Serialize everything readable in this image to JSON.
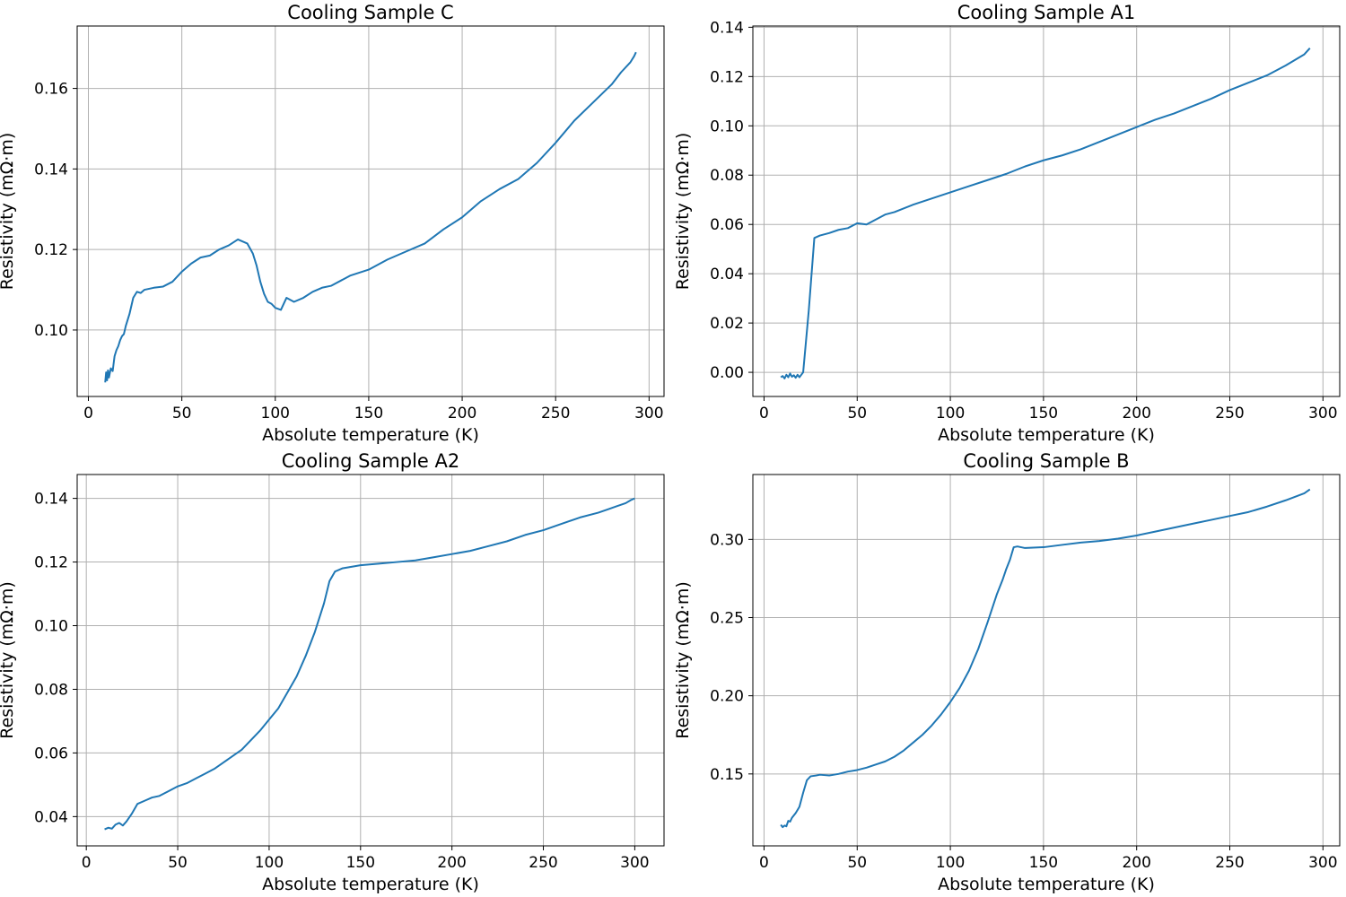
{
  "chart_data": [
    {
      "type": "line",
      "title": "Cooling Sample C",
      "xlabel": "Absolute temperature (K)",
      "ylabel": "Resistivity (mΩ·m)",
      "xlim": [
        -6,
        308
      ],
      "ylim": [
        0.0835,
        0.1755
      ],
      "xticks": [
        0,
        50,
        100,
        150,
        200,
        250,
        300
      ],
      "yticks": [
        0.1,
        0.12,
        0.14,
        0.16
      ],
      "ytick_decimals": 2,
      "grid": true,
      "color": "#1f77b4",
      "x": [
        9,
        9.5,
        10,
        10.5,
        11,
        12,
        13,
        14,
        15,
        16,
        17,
        18,
        19,
        20,
        22,
        24,
        26,
        28,
        30,
        35,
        40,
        45,
        50,
        55,
        60,
        65,
        70,
        75,
        80,
        85,
        88,
        90,
        92,
        94,
        96,
        98,
        100,
        103,
        106,
        110,
        115,
        120,
        125,
        130,
        140,
        150,
        160,
        170,
        180,
        190,
        200,
        210,
        220,
        230,
        240,
        250,
        260,
        270,
        280,
        285,
        290,
        292,
        293
      ],
      "y": [
        0.087,
        0.0895,
        0.0875,
        0.09,
        0.0882,
        0.0905,
        0.0898,
        0.0935,
        0.095,
        0.096,
        0.0975,
        0.0985,
        0.099,
        0.101,
        0.104,
        0.108,
        0.1095,
        0.1092,
        0.11,
        0.1105,
        0.1108,
        0.112,
        0.1145,
        0.1165,
        0.118,
        0.1185,
        0.12,
        0.121,
        0.1225,
        0.1215,
        0.119,
        0.116,
        0.112,
        0.109,
        0.107,
        0.1065,
        0.1055,
        0.105,
        0.108,
        0.107,
        0.108,
        0.1095,
        0.1105,
        0.111,
        0.1135,
        0.115,
        0.1175,
        0.1195,
        0.1215,
        0.125,
        0.128,
        0.132,
        0.135,
        0.1375,
        0.1415,
        0.1465,
        0.152,
        0.1565,
        0.161,
        0.164,
        0.1665,
        0.168,
        0.169
      ]
    },
    {
      "type": "line",
      "title": "Cooling Sample A1",
      "xlabel": "Absolute temperature (K)",
      "ylabel": "Resistivity (mΩ·m)",
      "xlim": [
        -6,
        309
      ],
      "ylim": [
        -0.0098,
        0.1405
      ],
      "xticks": [
        0,
        50,
        100,
        150,
        200,
        250,
        300
      ],
      "yticks": [
        0.0,
        0.02,
        0.04,
        0.06,
        0.08,
        0.1,
        0.12,
        0.14
      ],
      "ytick_decimals": 2,
      "grid": true,
      "color": "#1f77b4",
      "x": [
        9,
        10,
        11,
        12,
        13,
        14,
        15,
        16,
        17,
        18,
        19,
        20,
        21,
        24,
        27,
        30,
        35,
        40,
        45,
        50,
        55,
        60,
        65,
        70,
        80,
        90,
        100,
        110,
        120,
        130,
        140,
        150,
        160,
        170,
        180,
        190,
        200,
        210,
        220,
        230,
        240,
        250,
        260,
        270,
        280,
        290,
        293
      ],
      "y": [
        -0.002,
        -0.0015,
        -0.0025,
        -0.001,
        -0.002,
        -0.0005,
        -0.0018,
        -0.0012,
        -0.0022,
        -0.001,
        -0.002,
        -0.001,
        0.0,
        0.025,
        0.0545,
        0.0555,
        0.0565,
        0.0578,
        0.0585,
        0.0605,
        0.06,
        0.062,
        0.064,
        0.065,
        0.068,
        0.0705,
        0.073,
        0.0755,
        0.078,
        0.0805,
        0.0835,
        0.086,
        0.088,
        0.0905,
        0.0935,
        0.0965,
        0.0995,
        0.1025,
        0.105,
        0.108,
        0.111,
        0.1145,
        0.1175,
        0.1205,
        0.1245,
        0.129,
        0.1315
      ]
    },
    {
      "type": "line",
      "title": "Cooling Sample A2",
      "xlabel": "Absolute temperature (K)",
      "ylabel": "Resistivity (mΩ·m)",
      "xlim": [
        -5,
        316
      ],
      "ylim": [
        0.0308,
        0.1475
      ],
      "xticks": [
        0,
        50,
        100,
        150,
        200,
        250,
        300
      ],
      "yticks": [
        0.04,
        0.06,
        0.08,
        0.1,
        0.12,
        0.14
      ],
      "ytick_decimals": 2,
      "grid": true,
      "color": "#1f77b4",
      "x": [
        10,
        12,
        14,
        16,
        18,
        20,
        22,
        25,
        28,
        32,
        36,
        40,
        45,
        50,
        55,
        60,
        65,
        70,
        75,
        80,
        85,
        90,
        95,
        100,
        105,
        110,
        115,
        120,
        125,
        130,
        133,
        136,
        140,
        145,
        150,
        160,
        170,
        180,
        190,
        200,
        210,
        220,
        230,
        240,
        250,
        260,
        270,
        280,
        285,
        290,
        295,
        298,
        300
      ],
      "y": [
        0.036,
        0.0365,
        0.0362,
        0.0375,
        0.038,
        0.0372,
        0.0385,
        0.041,
        0.044,
        0.045,
        0.046,
        0.0465,
        0.048,
        0.0495,
        0.0505,
        0.052,
        0.0535,
        0.055,
        0.057,
        0.059,
        0.061,
        0.064,
        0.067,
        0.0705,
        0.074,
        0.079,
        0.084,
        0.0905,
        0.098,
        0.107,
        0.114,
        0.117,
        0.118,
        0.1185,
        0.119,
        0.1195,
        0.12,
        0.1205,
        0.1215,
        0.1225,
        0.1235,
        0.125,
        0.1265,
        0.1285,
        0.13,
        0.132,
        0.134,
        0.1355,
        0.1365,
        0.1375,
        0.1385,
        0.1395,
        0.14
      ]
    },
    {
      "type": "line",
      "title": "Cooling Sample B",
      "xlabel": "Absolute temperature (K)",
      "ylabel": "Resistivity (mΩ·m)",
      "xlim": [
        -6,
        309
      ],
      "ylim": [
        0.104,
        0.3415
      ],
      "xticks": [
        0,
        50,
        100,
        150,
        200,
        250,
        300
      ],
      "yticks": [
        0.15,
        0.2,
        0.25,
        0.3
      ],
      "ytick_decimals": 2,
      "grid": true,
      "color": "#1f77b4",
      "x": [
        9,
        10,
        11,
        12,
        13,
        14,
        15,
        17,
        19,
        21,
        23,
        25,
        28,
        30,
        35,
        40,
        45,
        50,
        55,
        60,
        65,
        70,
        75,
        80,
        85,
        90,
        95,
        100,
        105,
        110,
        115,
        120,
        125,
        128,
        130,
        132,
        134,
        136,
        140,
        150,
        160,
        170,
        180,
        190,
        200,
        210,
        220,
        230,
        240,
        250,
        260,
        270,
        280,
        290,
        293
      ],
      "y": [
        0.1175,
        0.116,
        0.117,
        0.1165,
        0.12,
        0.1195,
        0.122,
        0.125,
        0.129,
        0.138,
        0.146,
        0.1485,
        0.149,
        0.1495,
        0.149,
        0.15,
        0.1515,
        0.1525,
        0.154,
        0.156,
        0.158,
        0.161,
        0.165,
        0.17,
        0.175,
        0.181,
        0.188,
        0.196,
        0.205,
        0.216,
        0.23,
        0.247,
        0.265,
        0.274,
        0.281,
        0.287,
        0.295,
        0.2955,
        0.2945,
        0.295,
        0.2965,
        0.298,
        0.299,
        0.3005,
        0.3025,
        0.305,
        0.3075,
        0.31,
        0.3125,
        0.315,
        0.3175,
        0.321,
        0.325,
        0.3295,
        0.332
      ]
    }
  ]
}
